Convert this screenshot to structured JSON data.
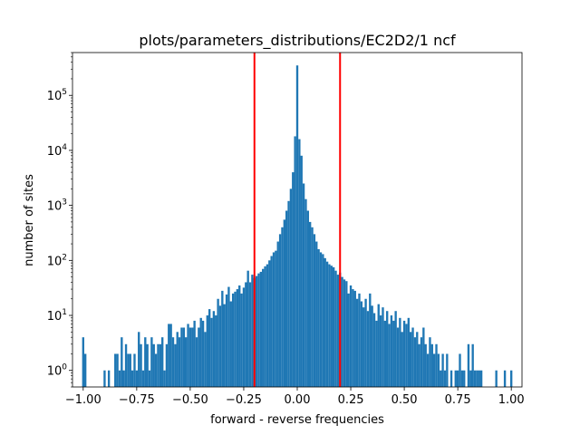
{
  "chart_data": {
    "type": "bar",
    "title": "plots/parameters_distributions/EC2D2/1 ncf",
    "xlabel": "forward - reverse frequencies",
    "ylabel": "number of sites",
    "y_scale": "log",
    "xlim": [
      -1.05,
      1.05
    ],
    "ylim": [
      0.5,
      600000
    ],
    "x_ticks": [
      -1.0,
      -0.75,
      -0.5,
      -0.25,
      0.0,
      0.25,
      0.5,
      0.75,
      1.0
    ],
    "x_tick_labels": [
      "−1.00",
      "−0.75",
      "−0.50",
      "−0.25",
      "0.00",
      "0.25",
      "0.50",
      "0.75",
      "1.00"
    ],
    "y_ticks": [
      1,
      10,
      100,
      1000,
      10000,
      100000
    ],
    "y_tick_labels": [
      "10",
      "10",
      "10",
      "10",
      "10",
      "10"
    ],
    "y_tick_exponents": [
      "0",
      "1",
      "2",
      "3",
      "4",
      "5"
    ],
    "bar_color": "#1f77b4",
    "vlines": [
      {
        "x": -0.2,
        "color": "#ff0000"
      },
      {
        "x": 0.2,
        "color": "#ff0000"
      }
    ],
    "bin_width": 0.01,
    "series": [
      {
        "bins": [
          [
            -1.0,
            4
          ],
          [
            -0.99,
            2
          ],
          [
            -0.9,
            1
          ],
          [
            -0.88,
            1
          ],
          [
            -0.85,
            2
          ],
          [
            -0.84,
            2
          ],
          [
            -0.83,
            1
          ],
          [
            -0.82,
            4
          ],
          [
            -0.81,
            1
          ],
          [
            -0.8,
            3
          ],
          [
            -0.79,
            2
          ],
          [
            -0.78,
            2
          ],
          [
            -0.77,
            1
          ],
          [
            -0.76,
            2
          ],
          [
            -0.75,
            1
          ],
          [
            -0.74,
            5
          ],
          [
            -0.73,
            3
          ],
          [
            -0.72,
            1
          ],
          [
            -0.71,
            4
          ],
          [
            -0.7,
            3
          ],
          [
            -0.69,
            1
          ],
          [
            -0.68,
            4
          ],
          [
            -0.67,
            3
          ],
          [
            -0.66,
            2
          ],
          [
            -0.65,
            3
          ],
          [
            -0.64,
            3
          ],
          [
            -0.63,
            4
          ],
          [
            -0.62,
            1
          ],
          [
            -0.61,
            3
          ],
          [
            -0.6,
            7
          ],
          [
            -0.59,
            7
          ],
          [
            -0.58,
            4
          ],
          [
            -0.57,
            3
          ],
          [
            -0.56,
            5
          ],
          [
            -0.55,
            4
          ],
          [
            -0.54,
            6
          ],
          [
            -0.53,
            6
          ],
          [
            -0.52,
            4
          ],
          [
            -0.51,
            7
          ],
          [
            -0.5,
            6
          ],
          [
            -0.49,
            6
          ],
          [
            -0.48,
            8
          ],
          [
            -0.47,
            4
          ],
          [
            -0.46,
            6
          ],
          [
            -0.45,
            9
          ],
          [
            -0.44,
            8
          ],
          [
            -0.43,
            5
          ],
          [
            -0.42,
            10
          ],
          [
            -0.41,
            13
          ],
          [
            -0.4,
            9
          ],
          [
            -0.39,
            12
          ],
          [
            -0.38,
            10
          ],
          [
            -0.37,
            20
          ],
          [
            -0.36,
            15
          ],
          [
            -0.35,
            28
          ],
          [
            -0.34,
            16
          ],
          [
            -0.33,
            24
          ],
          [
            -0.32,
            33
          ],
          [
            -0.31,
            18
          ],
          [
            -0.3,
            25
          ],
          [
            -0.29,
            27
          ],
          [
            -0.28,
            30
          ],
          [
            -0.27,
            35
          ],
          [
            -0.26,
            25
          ],
          [
            -0.25,
            32
          ],
          [
            -0.24,
            40
          ],
          [
            -0.23,
            65
          ],
          [
            -0.22,
            40
          ],
          [
            -0.21,
            55
          ],
          [
            -0.2,
            48
          ],
          [
            -0.19,
            52
          ],
          [
            -0.18,
            58
          ],
          [
            -0.17,
            62
          ],
          [
            -0.16,
            70
          ],
          [
            -0.15,
            78
          ],
          [
            -0.14,
            85
          ],
          [
            -0.13,
            100
          ],
          [
            -0.12,
            120
          ],
          [
            -0.11,
            140
          ],
          [
            -0.1,
            150
          ],
          [
            -0.09,
            220
          ],
          [
            -0.08,
            300
          ],
          [
            -0.07,
            400
          ],
          [
            -0.06,
            550
          ],
          [
            -0.05,
            800
          ],
          [
            -0.04,
            1200
          ],
          [
            -0.03,
            2000
          ],
          [
            -0.02,
            4000
          ],
          [
            -0.01,
            18000
          ],
          [
            0.0,
            350000
          ],
          [
            0.01,
            16000
          ],
          [
            0.02,
            8000
          ],
          [
            0.03,
            2500
          ],
          [
            0.04,
            1300
          ],
          [
            0.05,
            800
          ],
          [
            0.06,
            500
          ],
          [
            0.07,
            400
          ],
          [
            0.08,
            300
          ],
          [
            0.09,
            220
          ],
          [
            0.1,
            160
          ],
          [
            0.11,
            140
          ],
          [
            0.12,
            130
          ],
          [
            0.13,
            110
          ],
          [
            0.14,
            95
          ],
          [
            0.15,
            85
          ],
          [
            0.16,
            80
          ],
          [
            0.17,
            75
          ],
          [
            0.18,
            65
          ],
          [
            0.19,
            55
          ],
          [
            0.2,
            60
          ],
          [
            0.21,
            50
          ],
          [
            0.22,
            45
          ],
          [
            0.23,
            42
          ],
          [
            0.24,
            25
          ],
          [
            0.25,
            35
          ],
          [
            0.26,
            30
          ],
          [
            0.27,
            28
          ],
          [
            0.28,
            20
          ],
          [
            0.29,
            25
          ],
          [
            0.3,
            18
          ],
          [
            0.31,
            14
          ],
          [
            0.32,
            20
          ],
          [
            0.33,
            12
          ],
          [
            0.34,
            25
          ],
          [
            0.35,
            15
          ],
          [
            0.36,
            11
          ],
          [
            0.37,
            8
          ],
          [
            0.38,
            16
          ],
          [
            0.39,
            10
          ],
          [
            0.4,
            14
          ],
          [
            0.41,
            8
          ],
          [
            0.42,
            12
          ],
          [
            0.43,
            7
          ],
          [
            0.44,
            10
          ],
          [
            0.45,
            8
          ],
          [
            0.46,
            12
          ],
          [
            0.47,
            6
          ],
          [
            0.48,
            9
          ],
          [
            0.49,
            5
          ],
          [
            0.5,
            8
          ],
          [
            0.51,
            7
          ],
          [
            0.52,
            9
          ],
          [
            0.53,
            5
          ],
          [
            0.54,
            6
          ],
          [
            0.55,
            4
          ],
          [
            0.56,
            5
          ],
          [
            0.57,
            3
          ],
          [
            0.58,
            4
          ],
          [
            0.59,
            6
          ],
          [
            0.6,
            3
          ],
          [
            0.61,
            2
          ],
          [
            0.62,
            4
          ],
          [
            0.63,
            3
          ],
          [
            0.64,
            2
          ],
          [
            0.65,
            3
          ],
          [
            0.66,
            2
          ],
          [
            0.67,
            1
          ],
          [
            0.68,
            2
          ],
          [
            0.69,
            1
          ],
          [
            0.7,
            2
          ],
          [
            0.72,
            1
          ],
          [
            0.74,
            1
          ],
          [
            0.75,
            1
          ],
          [
            0.76,
            2
          ],
          [
            0.77,
            1
          ],
          [
            0.78,
            1
          ],
          [
            0.8,
            3
          ],
          [
            0.81,
            1
          ],
          [
            0.82,
            3
          ],
          [
            0.83,
            1
          ],
          [
            0.84,
            1
          ],
          [
            0.85,
            1
          ],
          [
            0.86,
            1
          ],
          [
            0.93,
            1
          ],
          [
            0.97,
            1
          ],
          [
            1.0,
            1
          ]
        ]
      }
    ]
  }
}
